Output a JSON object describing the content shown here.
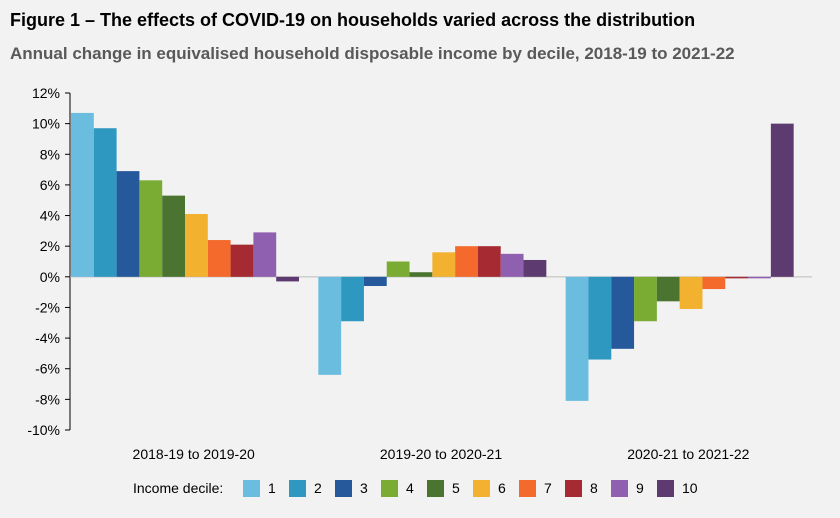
{
  "header": {
    "title": "Figure 1 – The effects of COVID-19 on households varied across the distribution",
    "subtitle": "Annual change in equivalised household disposable income by decile, 2018-19 to 2021-22"
  },
  "chart_data": {
    "type": "bar",
    "title": "Figure 1 – The effects of COVID-19 on households varied across the distribution",
    "subtitle": "Annual change in equivalised household disposable income by decile, 2018-19 to 2021-22",
    "xlabel": "",
    "ylabel": "",
    "ylim": [
      -10,
      12
    ],
    "ytick_step": 2,
    "ytick_suffix": "%",
    "grid": false,
    "legend_title": "Income decile:",
    "legend_position": "bottom",
    "categories": [
      "2018-19 to 2019-20",
      "2019-20 to 2020-21",
      "2020-21 to 2021-22"
    ],
    "series": [
      {
        "name": "1",
        "color": "#6bbde0",
        "values": [
          10.7,
          -6.4,
          -8.1
        ]
      },
      {
        "name": "2",
        "color": "#2e98c0",
        "values": [
          9.7,
          -2.9,
          -5.4
        ]
      },
      {
        "name": "3",
        "color": "#25599b",
        "values": [
          6.9,
          -0.6,
          -4.7
        ]
      },
      {
        "name": "4",
        "color": "#7aab33",
        "values": [
          6.3,
          1.0,
          -2.9
        ]
      },
      {
        "name": "5",
        "color": "#4b7430",
        "values": [
          5.3,
          0.3,
          -1.6
        ]
      },
      {
        "name": "6",
        "color": "#f2b230",
        "values": [
          4.1,
          1.6,
          -2.1
        ]
      },
      {
        "name": "7",
        "color": "#f46a2c",
        "values": [
          2.4,
          2.0,
          -0.8
        ]
      },
      {
        "name": "8",
        "color": "#a52a32",
        "values": [
          2.1,
          2.0,
          -0.1
        ]
      },
      {
        "name": "9",
        "color": "#9060b0",
        "values": [
          2.9,
          1.5,
          -0.1
        ]
      },
      {
        "name": "10",
        "color": "#5d3a70",
        "values": [
          -0.3,
          1.1,
          10.0
        ]
      }
    ]
  }
}
